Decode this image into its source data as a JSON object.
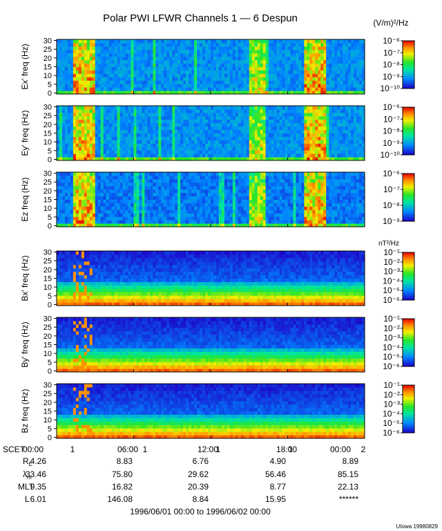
{
  "chart_data": {
    "type": "heatmap",
    "title": "Polar PWI LFWR Channels 1 — 6 Despun",
    "xlabel": "SCET",
    "x_ticks": [
      "00:00",
      "06:00",
      "12:00",
      "18:00",
      "00:00"
    ],
    "x_day_labels": [
      "1",
      "1",
      "1",
      "1",
      "2"
    ],
    "date_range": "1996/06/01 00:00 to 1996/06/02 00:00",
    "credit": "UIowa 19980829",
    "ylim": [
      0,
      30
    ],
    "y_ticks": [
      "0",
      "5",
      "10",
      "15",
      "20",
      "25",
      "30"
    ],
    "units_electric": "(V/m)²/Hz",
    "units_magnetic": "nT²/Hz",
    "panels": [
      {
        "ylabel": "Ex' freq (Hz)",
        "kind": "E",
        "colorbar": [
          "10⁻¹⁰",
          "10⁻⁹",
          "10⁻⁸",
          "10⁻⁷",
          "10⁻⁶"
        ]
      },
      {
        "ylabel": "Ey' freq (Hz)",
        "kind": "E",
        "colorbar": [
          "10⁻¹⁰",
          "10⁻⁹",
          "10⁻⁸",
          "10⁻⁷",
          "10⁻⁶"
        ]
      },
      {
        "ylabel": "Ez freq (Hz)",
        "kind": "Ez",
        "colorbar": [
          "10⁻⁹",
          "10⁻⁸",
          "10⁻⁷",
          "10⁻⁶"
        ]
      },
      {
        "ylabel": "Bx' freq (Hz)",
        "kind": "B",
        "colorbar": [
          "10⁻⁶",
          "10⁻⁵",
          "10⁻⁴",
          "10⁻³",
          "10⁻²",
          "10⁻¹"
        ]
      },
      {
        "ylabel": "By' freq (Hz)",
        "kind": "B",
        "colorbar": [
          "10⁻⁶",
          "10⁻⁵",
          "10⁻⁴",
          "10⁻³",
          "10⁻²",
          "10⁻¹"
        ]
      },
      {
        "ylabel": "Bz freq (Hz)",
        "kind": "B",
        "colorbar": [
          "10⁻⁶",
          "10⁻⁵",
          "10⁻⁴",
          "10⁻³",
          "10⁻²",
          "10⁻¹"
        ]
      }
    ],
    "ephemeris": [
      {
        "label": "R_E",
        "values": [
          "4.26",
          "8.83",
          "6.76",
          "4.90",
          "8.89"
        ]
      },
      {
        "label": "λ_m",
        "values": [
          "33.46",
          "75.80",
          "29.62",
          "56.46",
          "85.15"
        ]
      },
      {
        "label": "MLT",
        "values": [
          "9.35",
          "16.82",
          "20.39",
          "8.77",
          "22.13"
        ]
      },
      {
        "label": "L",
        "values": [
          "6.01",
          "146.08",
          "8.84",
          "15.95",
          "******"
        ]
      }
    ],
    "bursts_hours": [
      {
        "start": 1.2,
        "end": 3.0,
        "intensity": 1.0
      },
      {
        "start": 15.1,
        "end": 16.2,
        "intensity": 0.85
      },
      {
        "start": 19.2,
        "end": 21.1,
        "intensity": 1.0
      }
    ]
  }
}
